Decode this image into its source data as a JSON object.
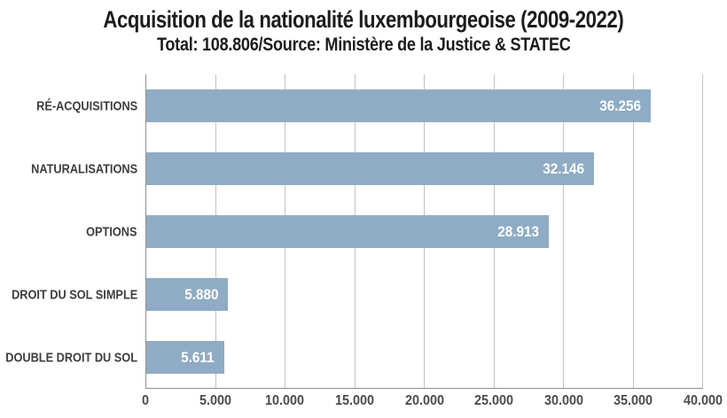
{
  "chart_data": {
    "type": "bar",
    "orientation": "horizontal",
    "title": "Acquisition de la nationalité luxembourgeoise (2009-2022)",
    "subtitle": "Total: 108.806/Source: Ministère de la Justice & STATEC",
    "categories": [
      "RÉ-ACQUISITIONS",
      "NATURALISATIONS",
      "OPTIONS",
      "DROIT DU SOL SIMPLE",
      "DOUBLE DROIT DU SOL"
    ],
    "values": [
      36256,
      32146,
      28913,
      5880,
      5611
    ],
    "value_labels": [
      "36.256",
      "32.146",
      "28.913",
      "5.880",
      "5.611"
    ],
    "xlim": [
      0,
      40000
    ],
    "x_ticks": [
      0,
      5000,
      10000,
      15000,
      20000,
      25000,
      30000,
      35000,
      40000
    ],
    "x_tick_labels": [
      "0",
      "5.000",
      "10.000",
      "15.000",
      "20.000",
      "25.000",
      "30.000",
      "35.000",
      "40.000"
    ],
    "grid": "vertical",
    "legend": "none",
    "bar_color": "#8FACC4",
    "value_label_color": "#ffffff",
    "gridline_color": "#c2c2c2",
    "axis_line_color": "#8f8f8f"
  }
}
